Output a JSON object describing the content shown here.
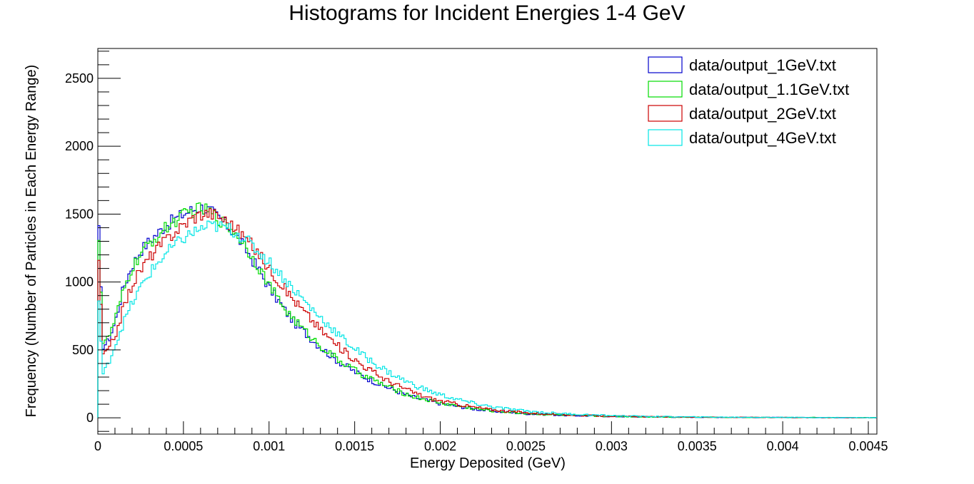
{
  "chart_data": {
    "type": "histogram",
    "title": "Histograms for Incident Energies 1-4 GeV",
    "xlabel": "Energy Deposited (GeV)",
    "ylabel": "Frequency (Number of Particles in Each Energy Range)",
    "xlim": [
      0,
      0.00455
    ],
    "ylim": [
      -120,
      2720
    ],
    "x_ticks": [
      "0",
      "0.0005",
      "0.001",
      "0.0015",
      "0.002",
      "0.0025",
      "0.003",
      "0.0035",
      "0.004",
      "0.0045"
    ],
    "y_ticks": [
      "0",
      "500",
      "1000",
      "1500",
      "2000",
      "2500"
    ],
    "legend_position": "top-right",
    "grid": false,
    "series": [
      {
        "name": "data/output_1GeV.txt",
        "color": "#0000cc",
        "points": [
          [
            0,
            1600
          ],
          [
            3e-05,
            530
          ],
          [
            6e-05,
            560
          ],
          [
            0.0001,
            700
          ],
          [
            0.00015,
            960
          ],
          [
            0.0002,
            1120
          ],
          [
            0.00025,
            1230
          ],
          [
            0.0003,
            1300
          ],
          [
            0.00035,
            1360
          ],
          [
            0.0004,
            1420
          ],
          [
            0.00045,
            1460
          ],
          [
            0.0005,
            1500
          ],
          [
            0.00055,
            1530
          ],
          [
            0.0006,
            1550
          ],
          [
            0.00065,
            1530
          ],
          [
            0.0007,
            1480
          ],
          [
            0.00075,
            1420
          ],
          [
            0.0008,
            1360
          ],
          [
            0.00085,
            1270
          ],
          [
            0.0009,
            1170
          ],
          [
            0.00095,
            1070
          ],
          [
            0.001,
            960
          ],
          [
            0.00105,
            870
          ],
          [
            0.0011,
            780
          ],
          [
            0.00115,
            700
          ],
          [
            0.0012,
            640
          ],
          [
            0.00125,
            580
          ],
          [
            0.0013,
            520
          ],
          [
            0.00135,
            470
          ],
          [
            0.0014,
            420
          ],
          [
            0.00145,
            380
          ],
          [
            0.0015,
            340
          ],
          [
            0.00155,
            305
          ],
          [
            0.0016,
            275
          ],
          [
            0.00165,
            245
          ],
          [
            0.0017,
            220
          ],
          [
            0.00175,
            195
          ],
          [
            0.0018,
            170
          ],
          [
            0.00185,
            150
          ],
          [
            0.0019,
            135
          ],
          [
            0.00195,
            120
          ],
          [
            0.002,
            105
          ],
          [
            0.0021,
            85
          ],
          [
            0.0022,
            65
          ],
          [
            0.0023,
            50
          ],
          [
            0.0024,
            40
          ],
          [
            0.0025,
            30
          ],
          [
            0.0026,
            25
          ],
          [
            0.0027,
            20
          ],
          [
            0.0028,
            16
          ],
          [
            0.003,
            10
          ],
          [
            0.0032,
            7
          ],
          [
            0.0034,
            5
          ],
          [
            0.0036,
            4
          ],
          [
            0.0038,
            3
          ],
          [
            0.004,
            2
          ],
          [
            0.0042,
            2
          ],
          [
            0.0044,
            1
          ],
          [
            0.00455,
            1
          ]
        ]
      },
      {
        "name": "data/output_1.1GeV.txt",
        "color": "#00dd00",
        "points": [
          [
            0,
            1550
          ],
          [
            3e-05,
            560
          ],
          [
            6e-05,
            580
          ],
          [
            0.0001,
            720
          ],
          [
            0.00015,
            930
          ],
          [
            0.0002,
            1100
          ],
          [
            0.00025,
            1200
          ],
          [
            0.0003,
            1280
          ],
          [
            0.00035,
            1340
          ],
          [
            0.0004,
            1400
          ],
          [
            0.00045,
            1450
          ],
          [
            0.0005,
            1490
          ],
          [
            0.00055,
            1520
          ],
          [
            0.0006,
            1540
          ],
          [
            0.00065,
            1520
          ],
          [
            0.0007,
            1470
          ],
          [
            0.00075,
            1420
          ],
          [
            0.0008,
            1370
          ],
          [
            0.00085,
            1290
          ],
          [
            0.0009,
            1190
          ],
          [
            0.00095,
            1090
          ],
          [
            0.001,
            980
          ],
          [
            0.00105,
            880
          ],
          [
            0.0011,
            790
          ],
          [
            0.00115,
            720
          ],
          [
            0.0012,
            650
          ],
          [
            0.00125,
            590
          ],
          [
            0.0013,
            530
          ],
          [
            0.00135,
            480
          ],
          [
            0.0014,
            430
          ],
          [
            0.00145,
            390
          ],
          [
            0.0015,
            350
          ],
          [
            0.00155,
            315
          ],
          [
            0.0016,
            285
          ],
          [
            0.00165,
            255
          ],
          [
            0.0017,
            225
          ],
          [
            0.00175,
            200
          ],
          [
            0.0018,
            175
          ],
          [
            0.00185,
            155
          ],
          [
            0.0019,
            140
          ],
          [
            0.00195,
            125
          ],
          [
            0.002,
            110
          ],
          [
            0.0021,
            88
          ],
          [
            0.0022,
            68
          ],
          [
            0.0023,
            52
          ],
          [
            0.0024,
            42
          ],
          [
            0.0025,
            32
          ],
          [
            0.0026,
            26
          ],
          [
            0.0027,
            21
          ],
          [
            0.0028,
            17
          ],
          [
            0.003,
            11
          ],
          [
            0.0032,
            7
          ],
          [
            0.0034,
            5
          ],
          [
            0.0036,
            4
          ],
          [
            0.0038,
            3
          ],
          [
            0.004,
            2
          ],
          [
            0.0042,
            2
          ],
          [
            0.0044,
            1
          ],
          [
            0.00455,
            1
          ]
        ]
      },
      {
        "name": "data/output_2GeV.txt",
        "color": "#cc0000",
        "points": [
          [
            0,
            1360
          ],
          [
            3e-05,
            470
          ],
          [
            6e-05,
            490
          ],
          [
            0.0001,
            600
          ],
          [
            0.00015,
            810
          ],
          [
            0.0002,
            980
          ],
          [
            0.00025,
            1090
          ],
          [
            0.0003,
            1180
          ],
          [
            0.00035,
            1250
          ],
          [
            0.0004,
            1310
          ],
          [
            0.00045,
            1370
          ],
          [
            0.0005,
            1420
          ],
          [
            0.00055,
            1470
          ],
          [
            0.0006,
            1500
          ],
          [
            0.00065,
            1510
          ],
          [
            0.0007,
            1490
          ],
          [
            0.00075,
            1450
          ],
          [
            0.0008,
            1400
          ],
          [
            0.00085,
            1340
          ],
          [
            0.0009,
            1270
          ],
          [
            0.00095,
            1190
          ],
          [
            0.001,
            1100
          ],
          [
            0.00105,
            1020
          ],
          [
            0.0011,
            940
          ],
          [
            0.00115,
            860
          ],
          [
            0.0012,
            790
          ],
          [
            0.00125,
            720
          ],
          [
            0.0013,
            650
          ],
          [
            0.00135,
            590
          ],
          [
            0.0014,
            530
          ],
          [
            0.00145,
            480
          ],
          [
            0.0015,
            430
          ],
          [
            0.00155,
            385
          ],
          [
            0.0016,
            345
          ],
          [
            0.00165,
            305
          ],
          [
            0.0017,
            270
          ],
          [
            0.00175,
            240
          ],
          [
            0.0018,
            210
          ],
          [
            0.00185,
            185
          ],
          [
            0.0019,
            160
          ],
          [
            0.00195,
            140
          ],
          [
            0.002,
            125
          ],
          [
            0.0021,
            100
          ],
          [
            0.0022,
            78
          ],
          [
            0.0023,
            60
          ],
          [
            0.0024,
            48
          ],
          [
            0.0025,
            38
          ],
          [
            0.0026,
            30
          ],
          [
            0.0027,
            24
          ],
          [
            0.0028,
            19
          ],
          [
            0.003,
            12
          ],
          [
            0.0032,
            8
          ],
          [
            0.0034,
            6
          ],
          [
            0.0036,
            4
          ],
          [
            0.0038,
            3
          ],
          [
            0.004,
            2
          ],
          [
            0.0042,
            2
          ],
          [
            0.0044,
            1
          ],
          [
            0.00455,
            1
          ]
        ]
      },
      {
        "name": "data/output_4GeV.txt",
        "color": "#00e5e5",
        "points": [
          [
            0,
            1000
          ],
          [
            3e-05,
            310
          ],
          [
            6e-05,
            400
          ],
          [
            0.0001,
            530
          ],
          [
            0.00015,
            700
          ],
          [
            0.0002,
            840
          ],
          [
            0.00025,
            960
          ],
          [
            0.0003,
            1060
          ],
          [
            0.00035,
            1140
          ],
          [
            0.0004,
            1210
          ],
          [
            0.00045,
            1270
          ],
          [
            0.0005,
            1320
          ],
          [
            0.00055,
            1360
          ],
          [
            0.0006,
            1390
          ],
          [
            0.00065,
            1410
          ],
          [
            0.0007,
            1410
          ],
          [
            0.00075,
            1400
          ],
          [
            0.0008,
            1370
          ],
          [
            0.00085,
            1330
          ],
          [
            0.0009,
            1270
          ],
          [
            0.00095,
            1210
          ],
          [
            0.001,
            1150
          ],
          [
            0.00105,
            1080
          ],
          [
            0.0011,
            1010
          ],
          [
            0.00115,
            940
          ],
          [
            0.0012,
            870
          ],
          [
            0.00125,
            800
          ],
          [
            0.0013,
            740
          ],
          [
            0.00135,
            680
          ],
          [
            0.0014,
            620
          ],
          [
            0.00145,
            560
          ],
          [
            0.0015,
            510
          ],
          [
            0.00155,
            460
          ],
          [
            0.0016,
            415
          ],
          [
            0.00165,
            375
          ],
          [
            0.0017,
            335
          ],
          [
            0.00175,
            300
          ],
          [
            0.0018,
            270
          ],
          [
            0.00185,
            240
          ],
          [
            0.0019,
            215
          ],
          [
            0.00195,
            190
          ],
          [
            0.002,
            170
          ],
          [
            0.0021,
            135
          ],
          [
            0.0022,
            105
          ],
          [
            0.0023,
            82
          ],
          [
            0.0024,
            64
          ],
          [
            0.0025,
            50
          ],
          [
            0.0026,
            40
          ],
          [
            0.0027,
            32
          ],
          [
            0.0028,
            25
          ],
          [
            0.003,
            16
          ],
          [
            0.0032,
            10
          ],
          [
            0.0034,
            7
          ],
          [
            0.0036,
            5
          ],
          [
            0.0038,
            4
          ],
          [
            0.004,
            3
          ],
          [
            0.0042,
            2
          ],
          [
            0.0044,
            2
          ],
          [
            0.00455,
            1
          ]
        ]
      }
    ]
  }
}
